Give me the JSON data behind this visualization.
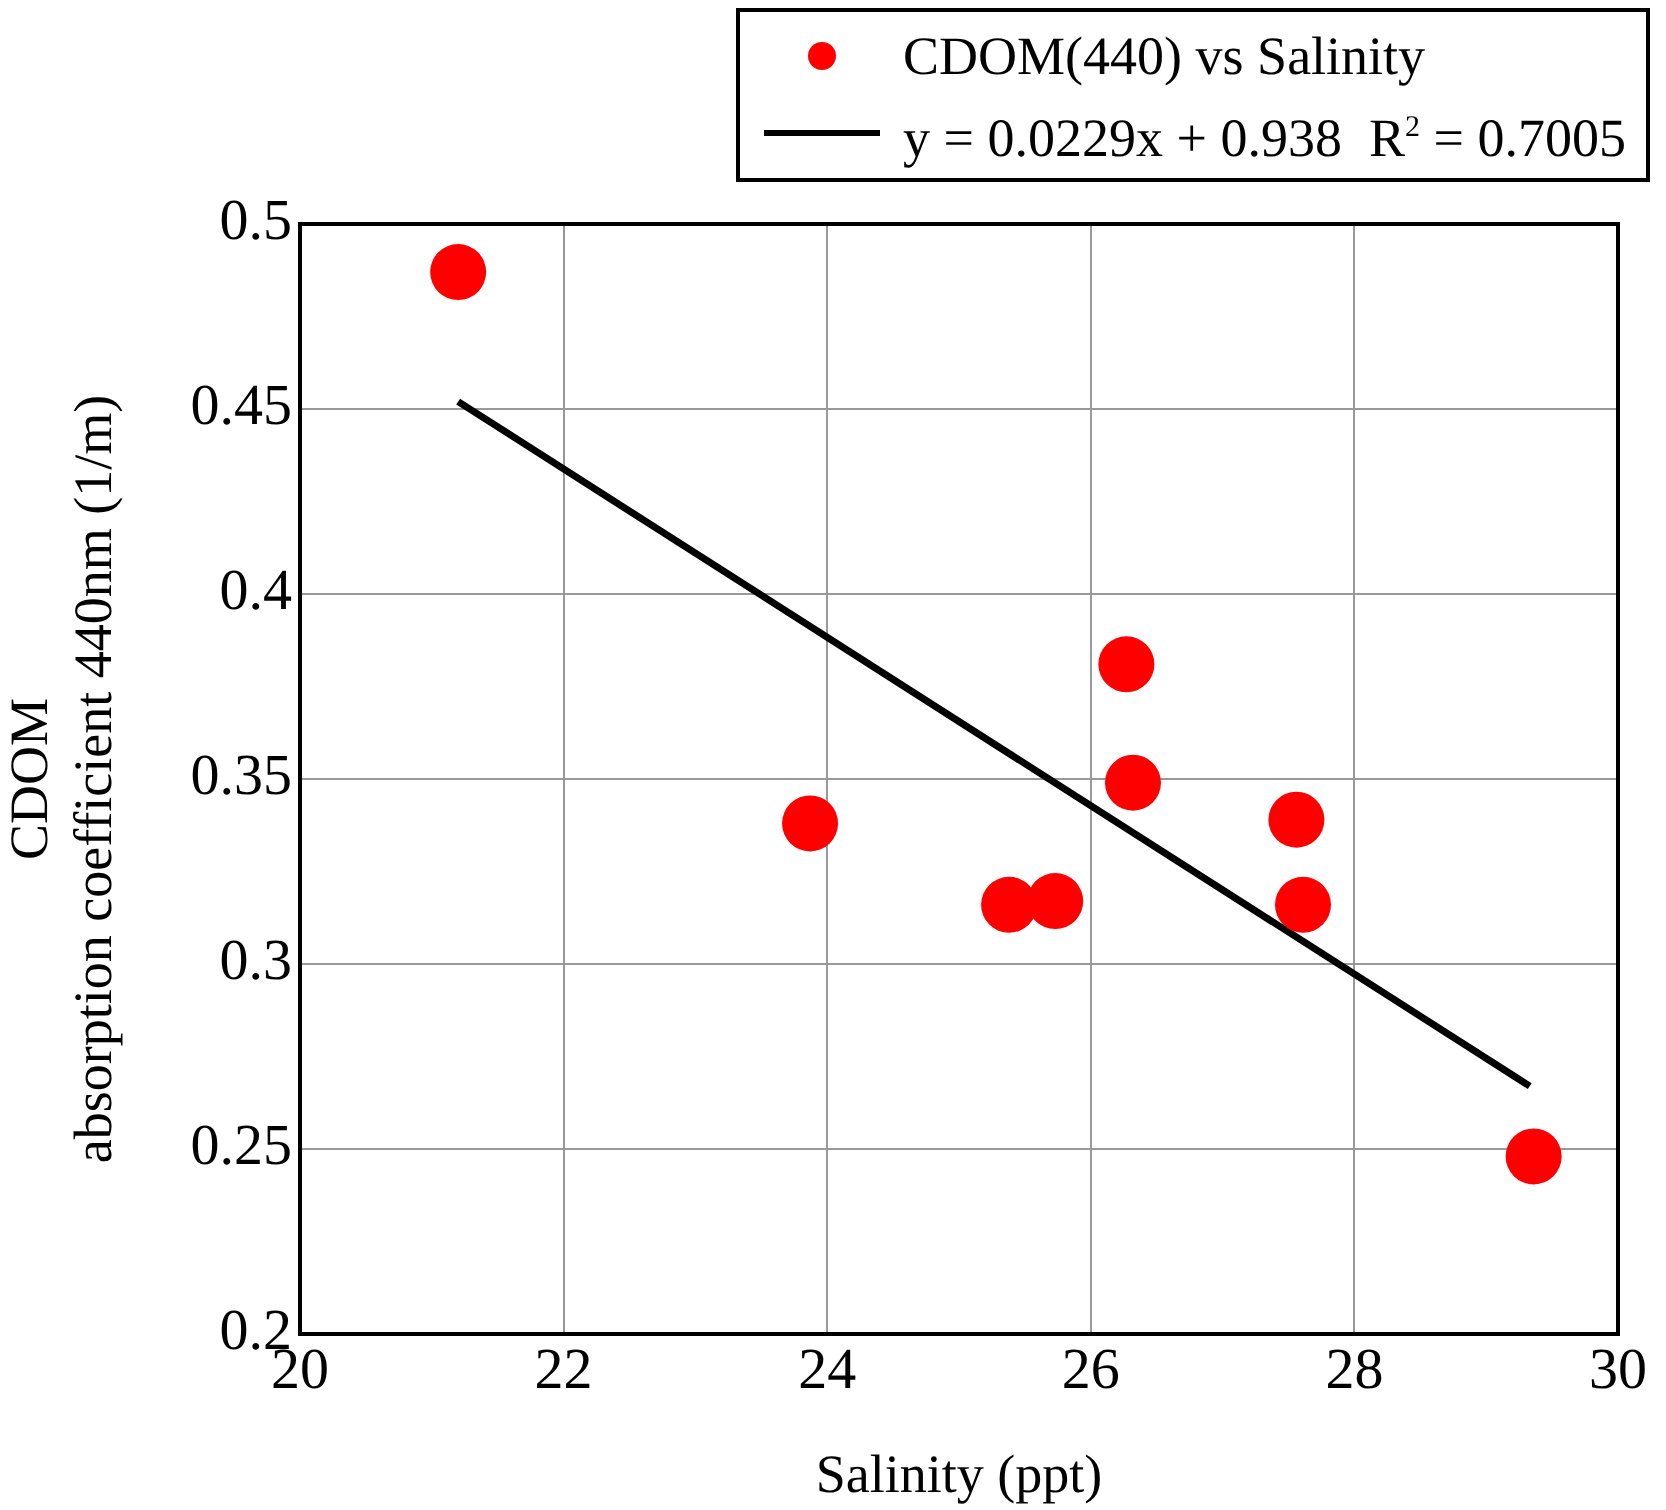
{
  "chart_data": {
    "type": "scatter",
    "xlabel": "Salinity (ppt)",
    "ylabel": "CDOM\nabsorption coefficient 440nm (1/m)",
    "xlim": [
      20,
      30
    ],
    "xticks": [
      20,
      22,
      24,
      26,
      28,
      30
    ],
    "ylim": [
      0.2,
      0.5
    ],
    "yticks": [
      0.2,
      0.25,
      0.3,
      0.35,
      0.4,
      0.45,
      0.5
    ],
    "grid": true,
    "legend": "top right",
    "series": [
      {
        "name": "CDOM(440) vs Salinity",
        "color": "#ff0000",
        "marker": "circle",
        "x": [
          21.2,
          23.87,
          25.38,
          25.73,
          26.27,
          26.32,
          27.56,
          27.61,
          29.36
        ],
        "values": [
          0.487,
          0.338,
          0.316,
          0.317,
          0.381,
          0.349,
          0.339,
          0.316,
          0.248
        ]
      },
      {
        "type": "line",
        "name": "y = 0.0229x + 0.938  R$^{2}$ = 0.7005",
        "color": "#000000",
        "marker": "none",
        "line_style": "solid",
        "x": [
          21.2,
          29.33
        ],
        "values": [
          0.452,
          0.267
        ]
      }
    ]
  }
}
